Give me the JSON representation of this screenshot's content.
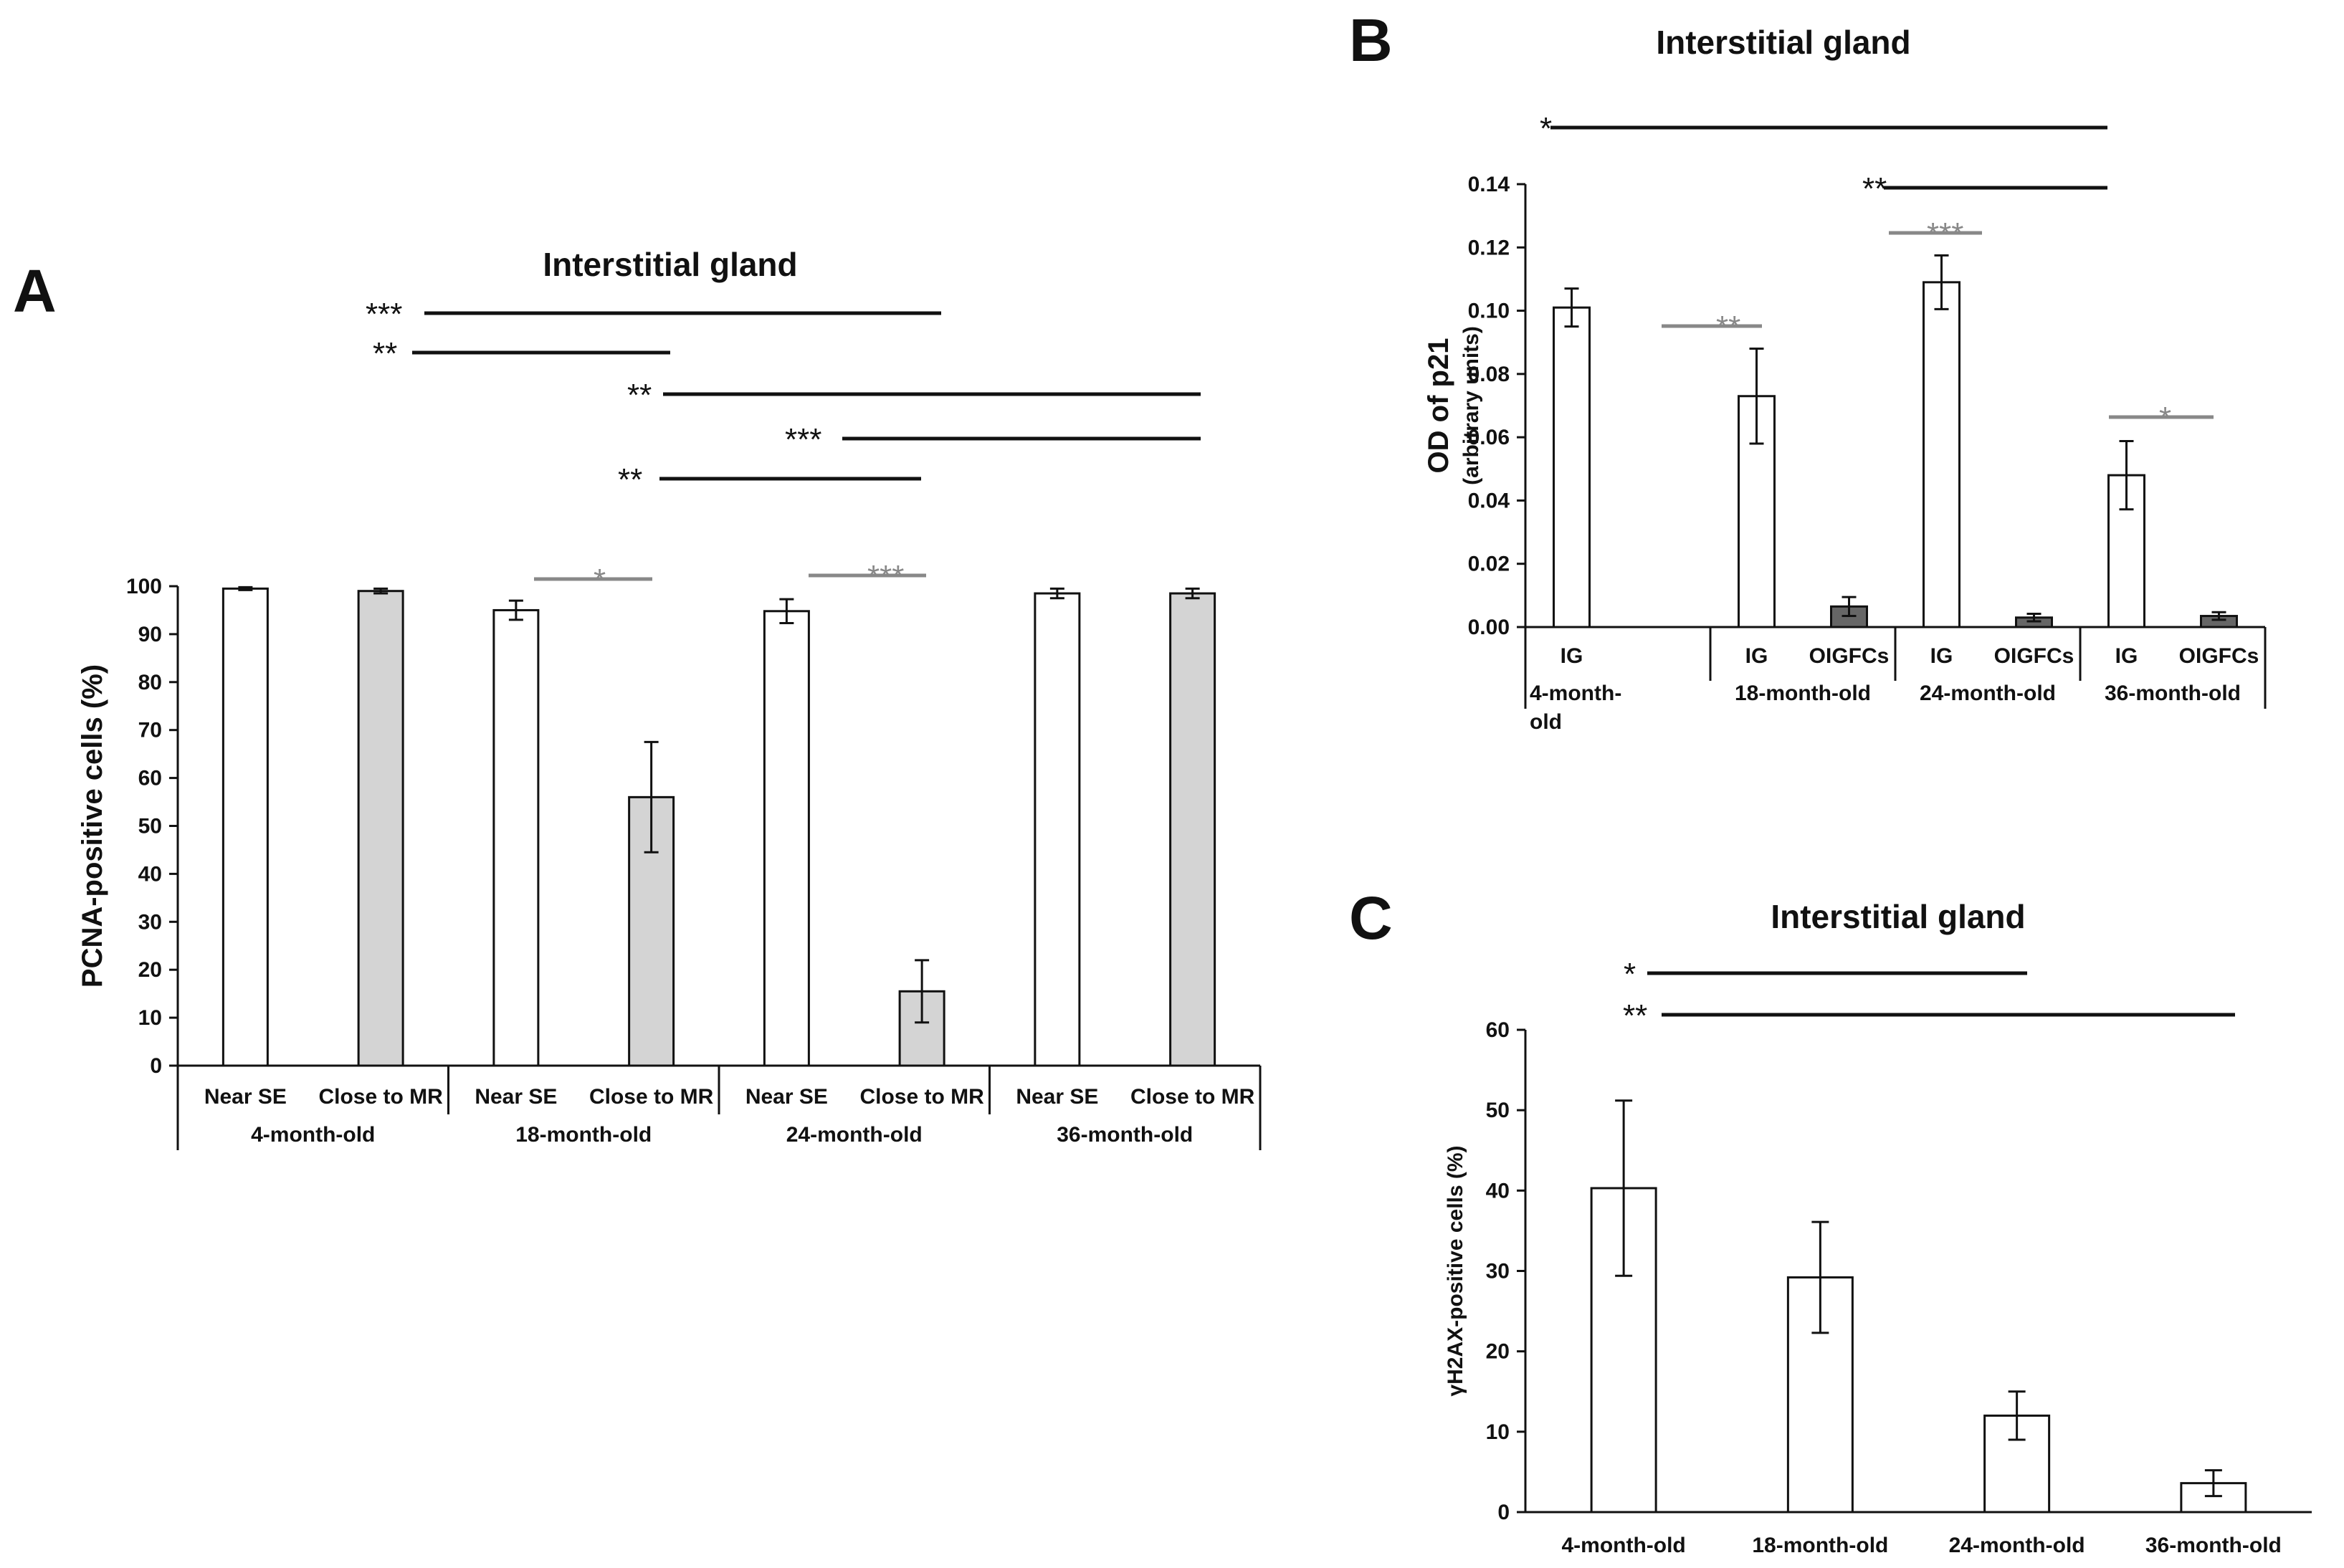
{
  "chart_data": [
    {
      "panel": "A",
      "type": "bar",
      "title": "Interstitial gland",
      "ylabel": "PCNA-positive cells (%)",
      "ylim": [
        0,
        100
      ],
      "yticks": [
        "0",
        "10",
        "20",
        "30",
        "40",
        "50",
        "60",
        "70",
        "80",
        "90",
        "100"
      ],
      "groups": [
        {
          "label": "4-month-old",
          "bars": [
            {
              "label": "Near SE",
              "value": 99.5,
              "err": 0.3,
              "fill": "#ffffff"
            },
            {
              "label": "Close to MR",
              "value": 99.0,
              "err": 0.5,
              "fill": "#d4d4d4"
            }
          ]
        },
        {
          "label": "18-month-old",
          "bars": [
            {
              "label": "Near SE",
              "value": 95.0,
              "err": 2.0,
              "fill": "#ffffff"
            },
            {
              "label": "Close to MR",
              "value": 56.0,
              "err": 11.5,
              "fill": "#d4d4d4"
            }
          ]
        },
        {
          "label": "24-month-old",
          "bars": [
            {
              "label": "Near SE",
              "value": 94.8,
              "err": 2.5,
              "fill": "#ffffff"
            },
            {
              "label": "Close to MR",
              "value": 15.5,
              "err": 6.5,
              "fill": "#d4d4d4"
            }
          ]
        },
        {
          "label": "36-month-old",
          "bars": [
            {
              "label": "Near SE",
              "value": 98.5,
              "err": 1.0,
              "fill": "#ffffff"
            },
            {
              "label": "Close to MR",
              "value": 98.5,
              "err": 1.0,
              "fill": "#d4d4d4"
            }
          ]
        }
      ],
      "significance": [
        {
          "stars": "***",
          "from": [
            1,
            1
          ],
          "to": [
            2,
            1
          ],
          "color": "#111111"
        },
        {
          "stars": "**",
          "from": [
            0,
            1
          ],
          "to": [
            1,
            1
          ],
          "color": "#111111"
        },
        {
          "stars": "**",
          "from": [
            1,
            1
          ],
          "to": [
            3,
            1
          ],
          "color": "#111111"
        },
        {
          "stars": "***",
          "from": [
            2,
            0
          ],
          "to": [
            3,
            1
          ],
          "color": "#111111"
        },
        {
          "stars": "**",
          "from": [
            1,
            1
          ],
          "to": [
            2,
            1
          ],
          "color": "#111111"
        },
        {
          "stars": "*",
          "from": [
            1,
            0
          ],
          "to": [
            1,
            1
          ],
          "color": "#888888"
        },
        {
          "stars": "***",
          "from": [
            2,
            0
          ],
          "to": [
            2,
            1
          ],
          "color": "#888888"
        }
      ]
    },
    {
      "panel": "B",
      "type": "bar",
      "title": "Interstitial gland",
      "ylabel": "OD of p21",
      "ylabel_sub": "(arbitrary units)",
      "ylim": [
        0,
        0.14
      ],
      "yticks": [
        "0.00",
        "0.02",
        "0.04",
        "0.06",
        "0.08",
        "0.10",
        "0.12",
        "0.14"
      ],
      "groups": [
        {
          "label": "4-month-old",
          "label_lines": [
            "4-month-",
            "old"
          ],
          "bars": [
            {
              "label": "IG",
              "value": 0.101,
              "err": 0.006,
              "fill": "#ffffff"
            }
          ]
        },
        {
          "label": "18-month-old",
          "bars": [
            {
              "label": "IG",
              "value": 0.073,
              "err": 0.015,
              "fill": "#ffffff"
            },
            {
              "label": "OIGFCs",
              "value": 0.0065,
              "err": 0.003,
              "fill": "#666666"
            }
          ]
        },
        {
          "label": "24-month-old",
          "bars": [
            {
              "label": "IG",
              "value": 0.109,
              "err": 0.0085,
              "fill": "#ffffff"
            },
            {
              "label": "OIGFCs",
              "value": 0.003,
              "err": 0.0012,
              "fill": "#666666"
            }
          ]
        },
        {
          "label": "36-month-old",
          "bars": [
            {
              "label": "IG",
              "value": 0.048,
              "err": 0.0108,
              "fill": "#ffffff"
            },
            {
              "label": "OIGFCs",
              "value": 0.0035,
              "err": 0.0012,
              "fill": "#666666"
            }
          ]
        }
      ],
      "significance": [
        {
          "stars": "*",
          "from": [
            0,
            0
          ],
          "to": [
            3,
            0
          ],
          "color": "#111111"
        },
        {
          "stars": "**",
          "from": [
            2,
            0
          ],
          "to": [
            3,
            0
          ],
          "color": "#111111"
        },
        {
          "stars": "***",
          "from": [
            2,
            0
          ],
          "to": [
            2,
            1
          ],
          "color": "#888888"
        },
        {
          "stars": "**",
          "from": [
            1,
            0
          ],
          "to": [
            1,
            1
          ],
          "color": "#888888"
        },
        {
          "stars": "*",
          "from": [
            3,
            0
          ],
          "to": [
            3,
            1
          ],
          "color": "#888888"
        }
      ]
    },
    {
      "panel": "C",
      "type": "bar",
      "title": "Interstitial gland",
      "ylabel": "γH2AX-positive cells (%)",
      "ylim": [
        0,
        60
      ],
      "yticks": [
        "0",
        "10",
        "20",
        "30",
        "40",
        "50",
        "60"
      ],
      "categories": [
        "4-month-old",
        "18-month-old",
        "24-month-old",
        "36-month-old"
      ],
      "values": [
        40.3,
        29.2,
        12.0,
        3.6
      ],
      "errors": [
        10.9,
        6.9,
        3.0,
        1.6
      ],
      "significance": [
        {
          "stars": "*",
          "from": 0,
          "to": 2,
          "color": "#111111"
        },
        {
          "stars": "**",
          "from": 0,
          "to": 3,
          "color": "#111111"
        }
      ]
    }
  ]
}
